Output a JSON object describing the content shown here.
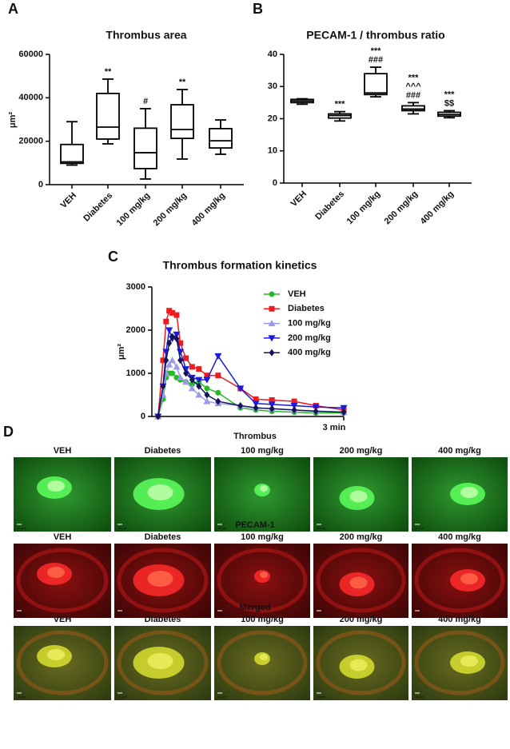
{
  "chart_data": [
    {
      "type": "box",
      "panel_label": "A",
      "title": "Thrombus area",
      "ylabel": "μm²",
      "categories": [
        "VEH",
        "Diabetes",
        "100 mg/kg",
        "200 mg/kg",
        "400 mg/kg"
      ],
      "boxes": [
        {
          "min": 9000,
          "q1": 9800,
          "median": 10500,
          "q3": 18500,
          "max": 29000
        },
        {
          "min": 18800,
          "q1": 21000,
          "median": 26500,
          "q3": 42000,
          "max": 48600
        },
        {
          "min": 2600,
          "q1": 7400,
          "median": 14700,
          "q3": 26000,
          "max": 35000
        },
        {
          "min": 11800,
          "q1": 21300,
          "median": 25400,
          "q3": 36800,
          "max": 43800
        },
        {
          "min": 14000,
          "q1": 16900,
          "median": 20200,
          "q3": 25800,
          "max": 29800
        }
      ],
      "annotations": [
        null,
        [
          "**"
        ],
        [
          "#"
        ],
        [
          "**"
        ],
        null
      ],
      "ylim": [
        0,
        60000
      ],
      "yticks": [
        0,
        20000,
        40000,
        60000
      ],
      "color": "#000000"
    },
    {
      "type": "box",
      "panel_label": "B",
      "title": "PECAM-1 / thrombus ratio",
      "categories": [
        "VEH",
        "Diabetes",
        "100 mg/kg",
        "200 mg/kg",
        "400 mg/kg"
      ],
      "boxes": [
        {
          "min": 24.5,
          "q1": 25,
          "median": 25.5,
          "q3": 26,
          "max": 26.2
        },
        {
          "min": 19.3,
          "q1": 20.2,
          "median": 21,
          "q3": 21.5,
          "max": 22.2
        },
        {
          "min": 26.8,
          "q1": 27.5,
          "median": 28,
          "q3": 34,
          "max": 36
        },
        {
          "min": 21.5,
          "q1": 22.5,
          "median": 23,
          "q3": 24,
          "max": 25
        },
        {
          "min": 20.3,
          "q1": 20.8,
          "median": 21.3,
          "q3": 22,
          "max": 22.5
        }
      ],
      "annotations": [
        null,
        [
          "***"
        ],
        [
          "***",
          "###"
        ],
        [
          "***",
          "^^^",
          "###"
        ],
        [
          "***",
          "$$"
        ]
      ],
      "ylim": [
        0,
        40
      ],
      "yticks": [
        0,
        10,
        20,
        30,
        40
      ],
      "color": "#000000"
    },
    {
      "type": "line",
      "panel_label": "C",
      "title": "Thrombus formation kinetics",
      "ylabel": "μm²",
      "x": [
        0,
        0.08,
        0.13,
        0.18,
        0.23,
        0.3,
        0.36,
        0.45,
        0.55,
        0.66,
        0.79,
        0.97,
        1.33,
        1.58,
        1.84,
        2.2,
        2.55,
        3.0
      ],
      "series": [
        {
          "name": "VEH",
          "color": "#22bb22",
          "marker": "circle",
          "values": [
            0,
            400,
            900,
            1000,
            1000,
            900,
            850,
            800,
            750,
            800,
            650,
            550,
            200,
            150,
            120,
            100,
            80,
            80
          ]
        },
        {
          "name": "Diabetes",
          "color": "#ee1c1c",
          "marker": "square",
          "values": [
            0,
            1300,
            2200,
            2450,
            2400,
            2350,
            1700,
            1350,
            1150,
            1100,
            950,
            950,
            650,
            400,
            380,
            350,
            250,
            150
          ]
        },
        {
          "name": "100 mg/kg",
          "color": "#9a9ae8",
          "marker": "triangle-up",
          "values": [
            0,
            500,
            1000,
            1200,
            1300,
            1150,
            900,
            800,
            650,
            500,
            350,
            300,
            250,
            200,
            180,
            150,
            130,
            100
          ]
        },
        {
          "name": "200 mg/kg",
          "color": "#1a1ae0",
          "marker": "triangle-down",
          "values": [
            0,
            700,
            1500,
            2000,
            1800,
            1900,
            1500,
            1100,
            900,
            850,
            850,
            1400,
            650,
            300,
            280,
            250,
            220,
            200
          ]
        },
        {
          "name": "400 mg/kg",
          "color": "#14145a",
          "marker": "diamond",
          "values": [
            0,
            700,
            1300,
            1700,
            1850,
            1800,
            1300,
            1000,
            850,
            700,
            500,
            350,
            250,
            200,
            180,
            150,
            120,
            100
          ]
        }
      ],
      "xlim": [
        -0.1,
        3.0
      ],
      "xticks": [
        {
          "value": 3,
          "label": "3 min"
        }
      ],
      "ylim": [
        0,
        3000
      ],
      "yticks": [
        0,
        1000,
        2000,
        3000
      ],
      "legend": "right"
    }
  ],
  "image_panel": {
    "panel_label": "D",
    "scale_bar": "10 μm",
    "rows": [
      {
        "title": "Thrombus",
        "color": "#1f9e1f",
        "labels": [
          "VEH",
          "Diabetes",
          "100 mg/kg",
          "200 mg/kg",
          "400 mg/kg"
        ]
      },
      {
        "title": "PECAM-1",
        "color": "#ee1c1c",
        "labels": [
          "VEH",
          "Diabetes",
          "100 mg/kg",
          "200 mg/kg",
          "400 mg/kg"
        ]
      },
      {
        "title": "Merged",
        "color": "#222222",
        "labels": [
          "VEH",
          "Diabetes",
          "100 mg/kg",
          "200 mg/kg",
          "400 mg/kg"
        ]
      }
    ]
  }
}
